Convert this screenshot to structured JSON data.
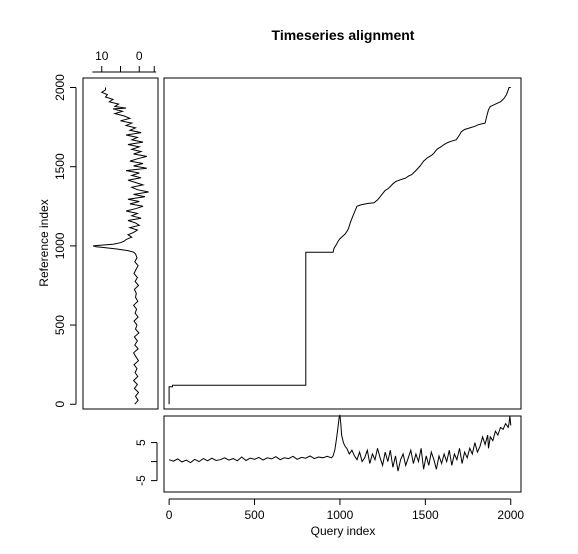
{
  "chart_data": [
    {
      "panel": "alignment",
      "type": "line",
      "title": "Timeseries alignment",
      "xlabel": "",
      "ylabel": "",
      "xlim": [
        -30,
        2060
      ],
      "ylim": [
        -30,
        2060
      ],
      "grid": false,
      "series": [
        {
          "name": "",
          "x": [
            0,
            0,
            20,
            20,
            800,
            800,
            810,
            810,
            960,
            965,
            980,
            990,
            1000,
            1015,
            1030,
            1040,
            1050,
            1060,
            1075,
            1090,
            1100,
            1120,
            1135,
            1150,
            1165,
            1180,
            1200,
            1220,
            1235,
            1250,
            1265,
            1280,
            1295,
            1310,
            1325,
            1340,
            1355,
            1370,
            1385,
            1400,
            1420,
            1440,
            1455,
            1470,
            1480,
            1490,
            1500,
            1510,
            1520,
            1530,
            1540,
            1550,
            1560,
            1570,
            1590,
            1610,
            1630,
            1650,
            1680,
            1700,
            1710,
            1730,
            1760,
            1790,
            1810,
            1830,
            1850,
            1860,
            1870,
            1880,
            1900,
            1920,
            1940,
            1960,
            1975,
            1985,
            1990,
            2000
          ],
          "y": [
            0,
            110,
            110,
            120,
            120,
            960,
            960,
            960,
            960,
            985,
            1010,
            1030,
            1045,
            1060,
            1075,
            1090,
            1110,
            1145,
            1185,
            1225,
            1250,
            1258,
            1262,
            1265,
            1268,
            1270,
            1272,
            1290,
            1310,
            1330,
            1350,
            1360,
            1375,
            1392,
            1405,
            1412,
            1418,
            1423,
            1428,
            1440,
            1450,
            1470,
            1488,
            1505,
            1520,
            1535,
            1545,
            1555,
            1562,
            1568,
            1575,
            1585,
            1600,
            1612,
            1625,
            1640,
            1652,
            1660,
            1670,
            1700,
            1720,
            1735,
            1745,
            1755,
            1765,
            1770,
            1775,
            1820,
            1860,
            1880,
            1890,
            1900,
            1910,
            1930,
            1955,
            1985,
            2000,
            2000
          ]
        }
      ]
    },
    {
      "panel": "reference",
      "type": "line",
      "xlabel": "",
      "ylabel": "Reference index",
      "xlim": [
        15,
        -5
      ],
      "ylim": [
        -30,
        2060
      ],
      "xticks": [
        10,
        0
      ],
      "yticks": [
        0,
        500,
        1000,
        1500,
        2000
      ],
      "grid": false,
      "series": [
        {
          "name": "",
          "index": [
            0,
            25,
            50,
            75,
            100,
            125,
            150,
            175,
            200,
            225,
            250,
            275,
            300,
            325,
            350,
            375,
            400,
            425,
            450,
            475,
            500,
            525,
            550,
            575,
            600,
            625,
            650,
            675,
            700,
            725,
            750,
            775,
            800,
            825,
            850,
            875,
            900,
            925,
            950,
            960,
            970,
            980,
            990,
            995,
            1000,
            1005,
            1010,
            1020,
            1030,
            1040,
            1055,
            1070,
            1085,
            1100,
            1115,
            1130,
            1145,
            1160,
            1175,
            1190,
            1205,
            1220,
            1235,
            1250,
            1265,
            1280,
            1295,
            1310,
            1325,
            1340,
            1355,
            1370,
            1385,
            1400,
            1415,
            1430,
            1445,
            1460,
            1475,
            1490,
            1505,
            1520,
            1535,
            1550,
            1565,
            1580,
            1595,
            1610,
            1625,
            1640,
            1655,
            1670,
            1685,
            1700,
            1715,
            1730,
            1745,
            1760,
            1775,
            1790,
            1805,
            1820,
            1835,
            1850,
            1865,
            1870,
            1880,
            1895,
            1910,
            1925,
            1940,
            1955,
            1970,
            1985,
            2000
          ],
          "value": [
            1.2,
            0.3,
            1.0,
            0.2,
            1.3,
            0.5,
            1.5,
            0.4,
            1.1,
            0.6,
            1.4,
            0.2,
            0.9,
            1.5,
            0.3,
            1.2,
            0.5,
            1.3,
            0.1,
            1.0,
            0.6,
            1.4,
            0.3,
            1.1,
            0.7,
            1.5,
            0.4,
            1.0,
            0.8,
            1.3,
            0.2,
            1.1,
            0.5,
            1.4,
            0.9,
            0.3,
            1.2,
            0.6,
            1.0,
            1.5,
            3.0,
            6.0,
            9.5,
            11.5,
            12.3,
            10.0,
            7.0,
            5.0,
            4.0,
            3.5,
            2.0,
            3.0,
            1.5,
            0.5,
            2.5,
            0.0,
            1.0,
            3.0,
            -0.5,
            2.0,
            0.5,
            3.5,
            1.0,
            -1.0,
            2.5,
            0.0,
            3.0,
            -1.5,
            1.5,
            -2.5,
            0.5,
            2.0,
            -1.0,
            1.0,
            3.0,
            -0.5,
            2.0,
            0.0,
            3.5,
            -2.0,
            1.5,
            -1.0,
            2.5,
            0.5,
            -2.0,
            1.5,
            -0.5,
            2.0,
            0.0,
            3.0,
            -1.0,
            2.0,
            0.5,
            3.5,
            -0.5,
            2.5,
            1.0,
            3.5,
            2.0,
            5.0,
            2.5,
            4.0,
            6.5,
            4.5,
            7.0,
            3.5,
            6.5,
            5.5,
            8.0,
            7.0,
            9.0,
            8.5,
            10.0,
            9.0,
            9.0
          ]
        }
      ]
    },
    {
      "panel": "query",
      "type": "line",
      "xlabel": "Query index",
      "ylabel": "",
      "xlim": [
        -30,
        2060
      ],
      "ylim": [
        -8,
        12
      ],
      "xticks": [
        0,
        500,
        1000,
        1500,
        2000
      ],
      "yticks": [
        -5,
        0,
        5
      ],
      "ytick_labels": [
        "-5",
        "",
        "5"
      ],
      "grid": false,
      "series": [
        {
          "name": "",
          "index": [
            0,
            25,
            50,
            75,
            100,
            125,
            150,
            175,
            200,
            225,
            250,
            275,
            300,
            325,
            350,
            375,
            400,
            425,
            450,
            475,
            500,
            525,
            550,
            575,
            600,
            625,
            650,
            675,
            700,
            725,
            750,
            775,
            800,
            825,
            850,
            875,
            900,
            925,
            950,
            960,
            970,
            980,
            990,
            995,
            1000,
            1005,
            1010,
            1020,
            1030,
            1040,
            1055,
            1070,
            1085,
            1100,
            1115,
            1130,
            1145,
            1160,
            1175,
            1190,
            1205,
            1220,
            1235,
            1250,
            1265,
            1280,
            1295,
            1310,
            1325,
            1340,
            1355,
            1370,
            1385,
            1400,
            1415,
            1430,
            1445,
            1460,
            1475,
            1490,
            1505,
            1520,
            1535,
            1550,
            1565,
            1580,
            1595,
            1610,
            1625,
            1640,
            1655,
            1670,
            1685,
            1700,
            1715,
            1730,
            1745,
            1760,
            1775,
            1790,
            1805,
            1820,
            1835,
            1850,
            1865,
            1870,
            1880,
            1895,
            1910,
            1925,
            1940,
            1955,
            1970,
            1985,
            1990,
            1995,
            2000
          ],
          "value": [
            0.5,
            0.1,
            0.7,
            -0.1,
            0.4,
            -0.3,
            0.6,
            0.0,
            0.8,
            0.2,
            0.9,
            0.3,
            0.5,
            1.0,
            0.4,
            0.8,
            0.2,
            1.2,
            0.3,
            0.9,
            0.6,
            1.1,
            0.4,
            1.0,
            0.7,
            1.3,
            0.5,
            1.0,
            0.8,
            1.4,
            0.6,
            1.1,
            0.9,
            1.5,
            0.8,
            1.2,
            1.0,
            1.4,
            1.0,
            1.5,
            3.0,
            6.0,
            9.5,
            11.5,
            12.3,
            10.0,
            7.0,
            5.0,
            4.0,
            3.5,
            2.0,
            3.0,
            1.5,
            0.5,
            2.5,
            0.0,
            1.0,
            3.0,
            -0.5,
            2.0,
            0.5,
            3.5,
            1.0,
            -1.0,
            2.5,
            0.0,
            3.0,
            -1.5,
            1.5,
            -2.5,
            0.5,
            2.0,
            -1.0,
            1.0,
            3.0,
            -0.5,
            2.0,
            0.0,
            3.5,
            -2.0,
            1.5,
            -1.0,
            2.5,
            0.5,
            -2.0,
            1.5,
            -0.5,
            2.0,
            0.0,
            3.0,
            -1.0,
            2.0,
            0.5,
            3.5,
            -0.5,
            2.5,
            1.0,
            3.5,
            2.0,
            5.0,
            2.5,
            4.0,
            6.5,
            4.5,
            7.0,
            3.5,
            6.5,
            5.5,
            8.0,
            7.0,
            9.0,
            8.5,
            10.0,
            9.0,
            10.0,
            12.0,
            9.5
          ]
        }
      ]
    }
  ]
}
